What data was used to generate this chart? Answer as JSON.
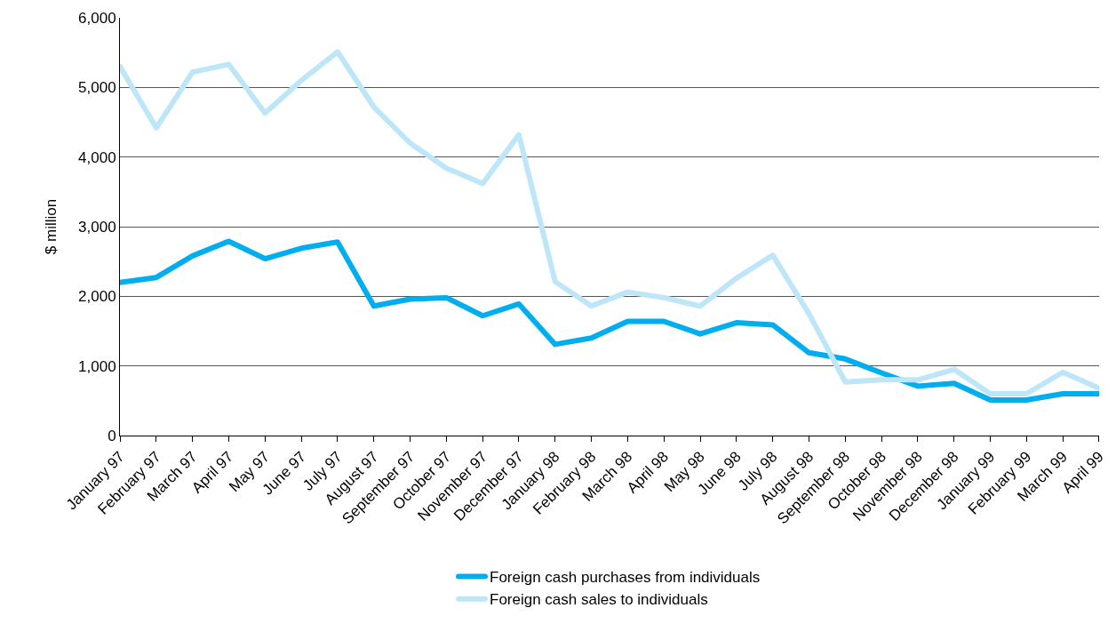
{
  "chart_data": {
    "type": "line",
    "ylabel": "$ million",
    "categories": [
      "January 97",
      "February 97",
      "March 97",
      "April 97",
      "May 97",
      "June 97",
      "July 97",
      "August 97",
      "September 97",
      "October 97",
      "November 97",
      "December 97",
      "January 98",
      "February 98",
      "March 98",
      "April 98",
      "May 98",
      "June 98",
      "July 98",
      "August 98",
      "September 98",
      "October 98",
      "November 98",
      "December 98",
      "January 99",
      "February 99",
      "March 99",
      "April 99"
    ],
    "series": [
      {
        "name": "Foreign cash purchases from individuals",
        "color": "#00aeef",
        "values": [
          2200,
          2270,
          2580,
          2790,
          2540,
          2690,
          2780,
          1860,
          1960,
          1980,
          1720,
          1890,
          1310,
          1400,
          1640,
          1640,
          1460,
          1620,
          1590,
          1190,
          1100,
          900,
          710,
          750,
          510,
          510,
          600,
          600
        ]
      },
      {
        "name": "Foreign cash sales to individuals",
        "color": "#bde6f9",
        "values": [
          5300,
          4420,
          5220,
          5330,
          4630,
          5100,
          5510,
          4720,
          4200,
          3840,
          3620,
          4320,
          2210,
          1860,
          2060,
          1980,
          1860,
          2260,
          2590,
          1750,
          770,
          800,
          800,
          950,
          600,
          600,
          910,
          680
        ]
      }
    ],
    "ylim": [
      0,
      6000
    ],
    "yticks": [
      {
        "value": 0,
        "label": "0"
      },
      {
        "value": 1000,
        "label": "1,000"
      },
      {
        "value": 2000,
        "label": "2,000"
      },
      {
        "value": 3000,
        "label": "3,000"
      },
      {
        "value": 4000,
        "label": "4,000"
      },
      {
        "value": 5000,
        "label": "5,000"
      },
      {
        "value": 6000,
        "label": "6,000"
      }
    ],
    "grid": "y",
    "legend": "bottom",
    "marker": "none",
    "line_style": "solid"
  }
}
